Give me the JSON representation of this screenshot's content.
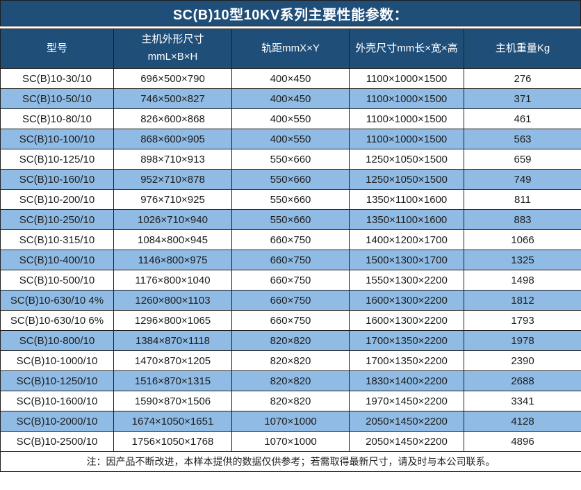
{
  "page": {
    "title": "SC(B)10型10KV系列主要性能参数："
  },
  "table": {
    "headers": [
      {
        "lines": [
          "型号"
        ]
      },
      {
        "lines": [
          "主机外形尺寸",
          "mmL×B×H"
        ]
      },
      {
        "lines": [
          "轨距mmX×Y"
        ]
      },
      {
        "lines": [
          "外壳尺寸mm长×宽×高"
        ]
      },
      {
        "lines": [
          "主机重量Kg"
        ]
      }
    ],
    "rows": [
      [
        "SC(B)10-30/10",
        "696×500×790",
        "400×450",
        "1100×1000×1500",
        "276"
      ],
      [
        "SC(B)10-50/10",
        "746×500×827",
        "400×450",
        "1100×1000×1500",
        "371"
      ],
      [
        "SC(B)10-80/10",
        "826×600×868",
        "400×550",
        "1100×1000×1500",
        "461"
      ],
      [
        "SC(B)10-100/10",
        "868×600×905",
        "400×550",
        "1100×1000×1500",
        "563"
      ],
      [
        "SC(B)10-125/10",
        "898×710×913",
        "550×660",
        "1250×1050×1500",
        "659"
      ],
      [
        "SC(B)10-160/10",
        "952×710×878",
        "550×660",
        "1250×1050×1500",
        "749"
      ],
      [
        "SC(B)10-200/10",
        "976×710×925",
        "550×660",
        "1350×1100×1600",
        "811"
      ],
      [
        "SC(B)10-250/10",
        "1026×710×940",
        "550×660",
        "1350×1100×1600",
        "883"
      ],
      [
        "SC(B)10-315/10",
        "1084×800×945",
        "660×750",
        "1400×1200×1700",
        "1066"
      ],
      [
        "SC(B)10-400/10",
        "1146×800×975",
        "660×750",
        "1500×1300×1700",
        "1325"
      ],
      [
        "SC(B)10-500/10",
        "1176×800×1040",
        "660×750",
        "1550×1300×2200",
        "1498"
      ],
      [
        "SC(B)10-630/10 4%",
        "1260×800×1103",
        "660×750",
        "1600×1300×2200",
        "1812"
      ],
      [
        "SC(B)10-630/10 6%",
        "1296×800×1065",
        "660×750",
        "1600×1300×2200",
        "1793"
      ],
      [
        "SC(B)10-800/10",
        "1384×870×1118",
        "820×820",
        "1700×1350×2200",
        "1978"
      ],
      [
        "SC(B)10-1000/10",
        "1470×870×1205",
        "820×820",
        "1700×1350×2200",
        "2390"
      ],
      [
        "SC(B)10-1250/10",
        "1516×870×1315",
        "820×820",
        "1830×1400×2200",
        "2688"
      ],
      [
        "SC(B)10-1600/10",
        "1590×870×1506",
        "820×820",
        "1970×1450×2200",
        "3341"
      ],
      [
        "SC(B)10-2000/10",
        "1674×1050×1651",
        "1070×1000",
        "2050×1450×2200",
        "4128"
      ],
      [
        "SC(B)10-2500/10",
        "1756×1050×1768",
        "1070×1000",
        "2050×1450×2200",
        "4896"
      ]
    ],
    "note": "注：因产品不断改进，本样本提供的数据仅供参考；若需取得最新尺寸，请及时与本公司联系。"
  },
  "colors": {
    "header_bg": "#1F4E79",
    "header_text": "#FFFFFF",
    "row_alt_bg": "#8FBBE5",
    "border": "#1F1F1F",
    "text": "#1C1C1C"
  }
}
